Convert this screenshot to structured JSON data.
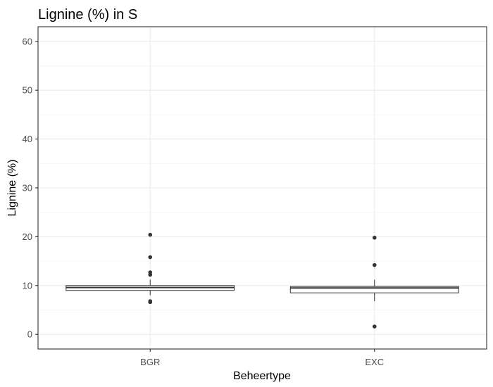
{
  "chart_data": {
    "type": "boxplot",
    "title": "Lignine (%) in S",
    "xlabel": "Beheertype",
    "ylabel": "Lignine (%)",
    "ylim": [
      -3,
      63
    ],
    "yticks": [
      0,
      10,
      20,
      30,
      40,
      50,
      60
    ],
    "grid": true,
    "categories": [
      "BGR",
      "EXC"
    ],
    "boxes": [
      {
        "category": "BGR",
        "whisker_low": 8.0,
        "q1": 9.0,
        "median": 9.6,
        "q3": 10.0,
        "whisker_high": 11.2,
        "outliers": [
          20.4,
          15.8,
          12.7,
          12.2,
          6.8,
          6.6
        ]
      },
      {
        "category": "EXC",
        "whisker_low": 6.8,
        "q1": 8.5,
        "median": 9.5,
        "q3": 9.8,
        "whisker_high": 11.2,
        "outliers": [
          19.8,
          14.2,
          1.6
        ]
      }
    ]
  }
}
